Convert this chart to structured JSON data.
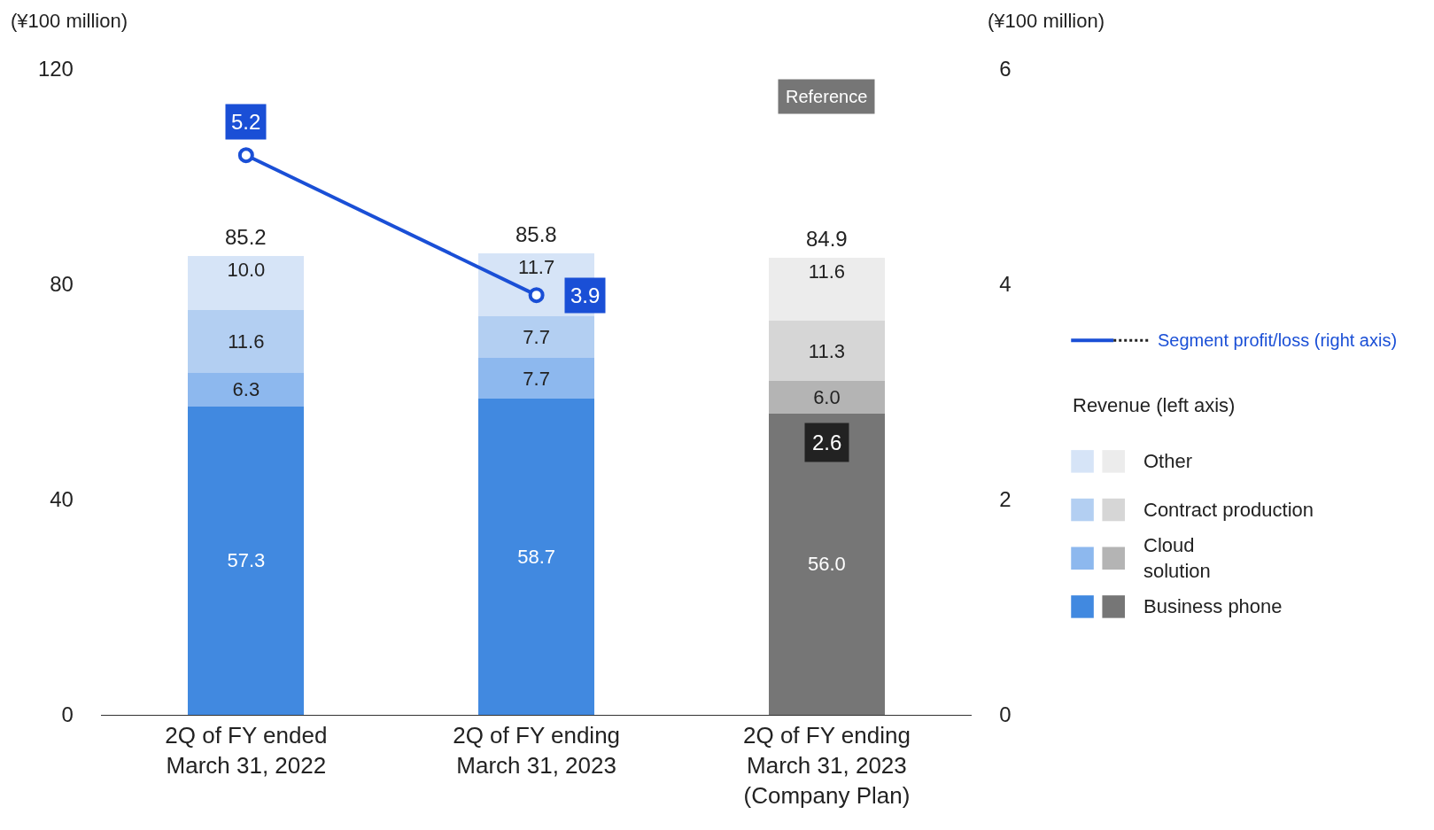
{
  "chart_data": {
    "type": "bar",
    "stacked": true,
    "categories": [
      "2Q of FY ended\nMarch 31, 2022",
      "2Q of FY ending\nMarch 31, 2023",
      "2Q of FY ending\nMarch 31, 2023\n(Company Plan)"
    ],
    "ylabel": "(¥100 million)",
    "y2label": "(¥100 million)",
    "ylim": [
      0,
      120
    ],
    "yticks": [
      0,
      40,
      80,
      120
    ],
    "y2lim": [
      0,
      6
    ],
    "y2ticks": [
      0,
      2,
      4,
      6
    ],
    "legend": "right",
    "legend_title": "Revenue (left axis)",
    "totals": [
      "85.2",
      "85.8",
      "84.9"
    ],
    "annotations": [
      "Reference",
      "2.6"
    ],
    "series": [
      {
        "name": "Business phone",
        "colors": [
          "#4189e0",
          "#4189e0",
          "#767676"
        ],
        "values": [
          57.3,
          58.7,
          56.0
        ],
        "value_labels": [
          "57.3",
          "58.7",
          "56.0"
        ]
      },
      {
        "name": "Cloud\nsolution",
        "colors": [
          "#8db8ee",
          "#8db8ee",
          "#b4b4b4"
        ],
        "values": [
          6.3,
          7.7,
          6.0
        ],
        "value_labels": [
          "6.3",
          "7.7",
          "6.0"
        ]
      },
      {
        "name": "Contract production",
        "colors": [
          "#b3cff2",
          "#b3cff2",
          "#d6d6d6"
        ],
        "values": [
          11.6,
          7.7,
          11.3
        ],
        "value_labels": [
          "11.6",
          "7.7",
          "11.3"
        ]
      },
      {
        "name": "Other",
        "colors": [
          "#d6e4f7",
          "#d6e4f7",
          "#ececec"
        ],
        "values": [
          10.0,
          11.7,
          11.6
        ],
        "value_labels": [
          "10.0",
          "11.7",
          "11.6"
        ]
      },
      {
        "name": "Segment profit/loss (right axis)",
        "type": "line",
        "axis": "y2",
        "color": "#1a4fd6",
        "marker": "circle",
        "line_style": "solid",
        "values": [
          5.2,
          3.9,
          null
        ],
        "value_labels": [
          "5.2",
          "3.9",
          null
        ]
      }
    ]
  }
}
